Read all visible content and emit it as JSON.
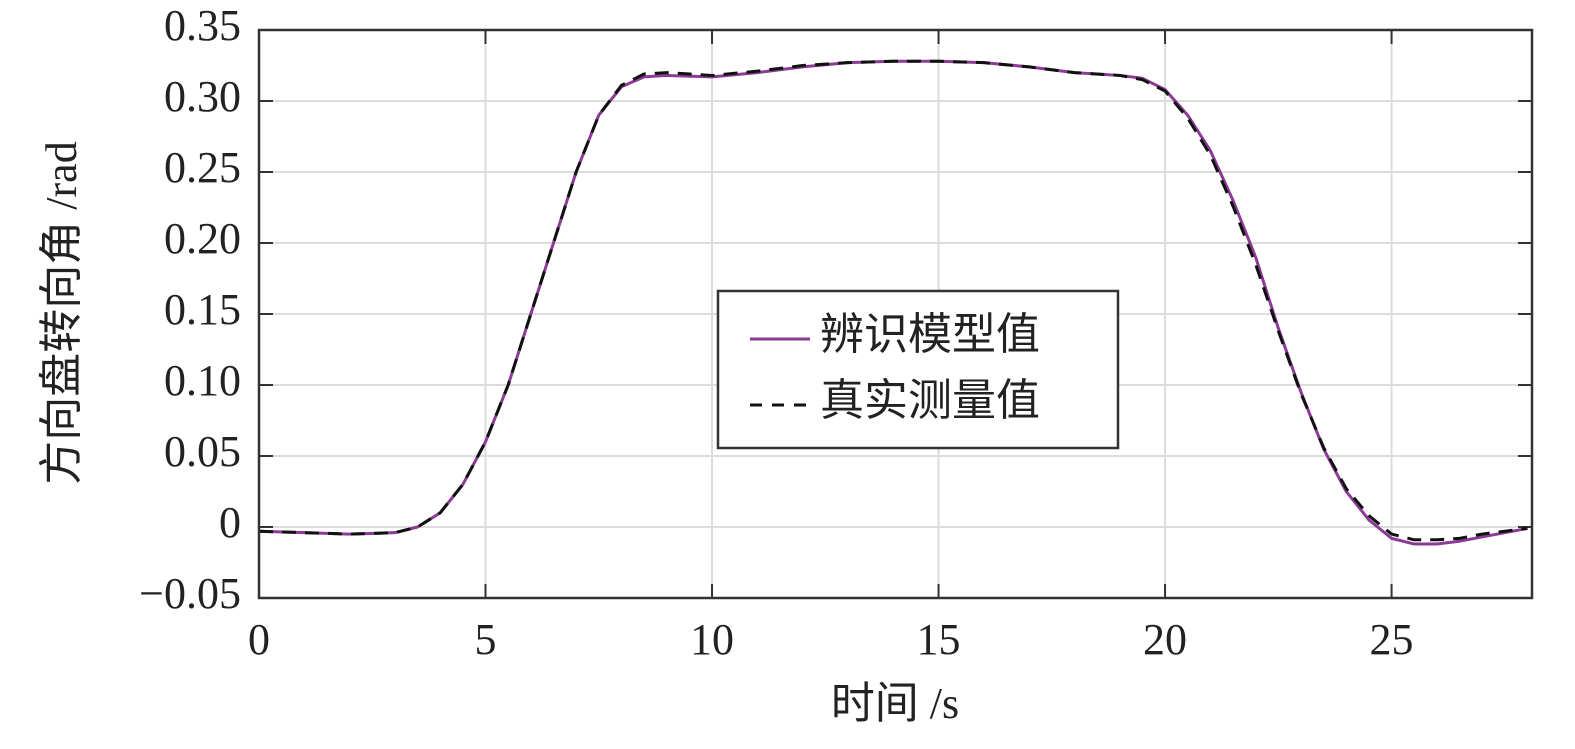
{
  "chart_data": {
    "type": "line",
    "xlabel": "时间 /s",
    "ylabel": "方向盘转向角 /rad",
    "xlim": [
      0,
      28.1
    ],
    "ylim": [
      -0.05,
      0.35
    ],
    "xticks": [
      0,
      5,
      10,
      15,
      20,
      25
    ],
    "yticks": [
      {
        "value": -0.05,
        "label": "−0.05"
      },
      0,
      0.05,
      {
        "value": 0.1,
        "label": "0.10"
      },
      0.15,
      {
        "value": 0.2,
        "label": "0.20"
      },
      0.25,
      {
        "value": 0.3,
        "label": "0.30"
      },
      0.35
    ],
    "grid": true,
    "legend": "center",
    "x": [
      0,
      1,
      2,
      3,
      3.5,
      4,
      4.5,
      5,
      5.5,
      6,
      6.5,
      7,
      7.5,
      8,
      8.5,
      9,
      10,
      11,
      12,
      13,
      14,
      15,
      16,
      17,
      18,
      19,
      19.5,
      20,
      20.5,
      21,
      21.5,
      22,
      22.5,
      23,
      23.5,
      24,
      24.5,
      25,
      25.5,
      26,
      26.5,
      27,
      27.5,
      28
    ],
    "series": [
      {
        "name": "辨识模型值",
        "color": "#8b3a96",
        "dash": false,
        "values": [
          -0.003,
          -0.004,
          -0.005,
          -0.004,
          0.0,
          0.01,
          0.03,
          0.06,
          0.1,
          0.15,
          0.2,
          0.25,
          0.29,
          0.31,
          0.317,
          0.318,
          0.317,
          0.32,
          0.324,
          0.327,
          0.328,
          0.328,
          0.327,
          0.324,
          0.32,
          0.318,
          0.316,
          0.308,
          0.29,
          0.265,
          0.23,
          0.19,
          0.14,
          0.095,
          0.055,
          0.025,
          0.005,
          -0.008,
          -0.012,
          -0.012,
          -0.01,
          -0.007,
          -0.004,
          -0.001
        ]
      },
      {
        "name": "真实测量值",
        "color": "#111111",
        "dash": true,
        "values": [
          -0.003,
          -0.004,
          -0.005,
          -0.004,
          0.0,
          0.01,
          0.03,
          0.06,
          0.1,
          0.15,
          0.2,
          0.25,
          0.29,
          0.311,
          0.319,
          0.32,
          0.318,
          0.321,
          0.325,
          0.327,
          0.328,
          0.328,
          0.327,
          0.324,
          0.32,
          0.318,
          0.315,
          0.307,
          0.288,
          0.262,
          0.226,
          0.185,
          0.138,
          0.094,
          0.056,
          0.027,
          0.008,
          -0.005,
          -0.009,
          -0.009,
          -0.008,
          -0.005,
          -0.003,
          -0.001
        ]
      }
    ]
  }
}
